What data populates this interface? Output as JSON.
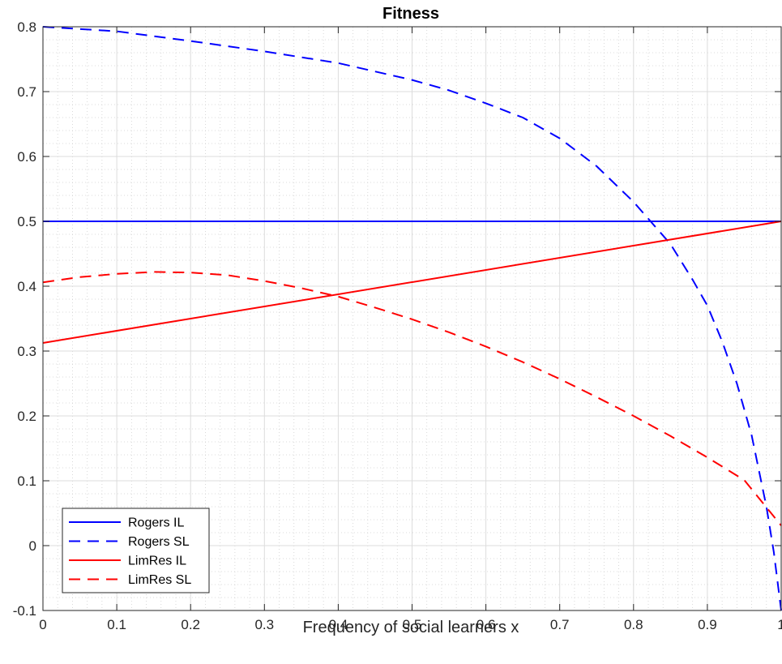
{
  "chart_data": {
    "type": "line",
    "title": "Fitness",
    "xlabel": "Frequency of social learners x",
    "ylabel": "",
    "xlim": [
      0,
      1
    ],
    "ylim": [
      -0.1,
      0.8
    ],
    "xticks": [
      "0",
      "0.1",
      "0.2",
      "0.3",
      "0.4",
      "0.5",
      "0.6",
      "0.7",
      "0.8",
      "0.9",
      "1"
    ],
    "yticks": [
      "-0.1",
      "0",
      "0.1",
      "0.2",
      "0.3",
      "0.4",
      "0.5",
      "0.6",
      "0.7",
      "0.8"
    ],
    "grid": true,
    "minor_grid": true,
    "legend_position": "bottom-left",
    "series": [
      {
        "name": "Rogers IL",
        "color": "#0000ff",
        "dash": "solid",
        "x": [
          0,
          1
        ],
        "y": [
          0.5,
          0.5
        ]
      },
      {
        "name": "Rogers SL",
        "color": "#0000ff",
        "dash": "dashed",
        "x": [
          0,
          0.1,
          0.2,
          0.3,
          0.4,
          0.5,
          0.55,
          0.6,
          0.65,
          0.7,
          0.75,
          0.8,
          0.85,
          0.88,
          0.9,
          0.92,
          0.94,
          0.96,
          0.98,
          0.99,
          1.0
        ],
        "y": [
          0.8,
          0.793,
          0.778,
          0.762,
          0.744,
          0.718,
          0.702,
          0.682,
          0.66,
          0.628,
          0.585,
          0.53,
          0.465,
          0.41,
          0.37,
          0.315,
          0.25,
          0.17,
          0.06,
          -0.01,
          -0.1
        ]
      },
      {
        "name": "LimRes IL",
        "color": "#ff0000",
        "dash": "solid",
        "x": [
          0,
          1
        ],
        "y": [
          0.3125,
          0.5
        ]
      },
      {
        "name": "LimRes SL",
        "color": "#ff0000",
        "dash": "dashed",
        "x": [
          0,
          0.05,
          0.1,
          0.15,
          0.2,
          0.25,
          0.3,
          0.35,
          0.4,
          0.45,
          0.5,
          0.55,
          0.6,
          0.65,
          0.7,
          0.75,
          0.8,
          0.85,
          0.9,
          0.95,
          1.0
        ],
        "y": [
          0.406,
          0.414,
          0.419,
          0.422,
          0.421,
          0.417,
          0.408,
          0.397,
          0.384,
          0.367,
          0.349,
          0.329,
          0.307,
          0.283,
          0.257,
          0.229,
          0.2,
          0.169,
          0.136,
          0.101,
          0.031
        ]
      }
    ]
  }
}
